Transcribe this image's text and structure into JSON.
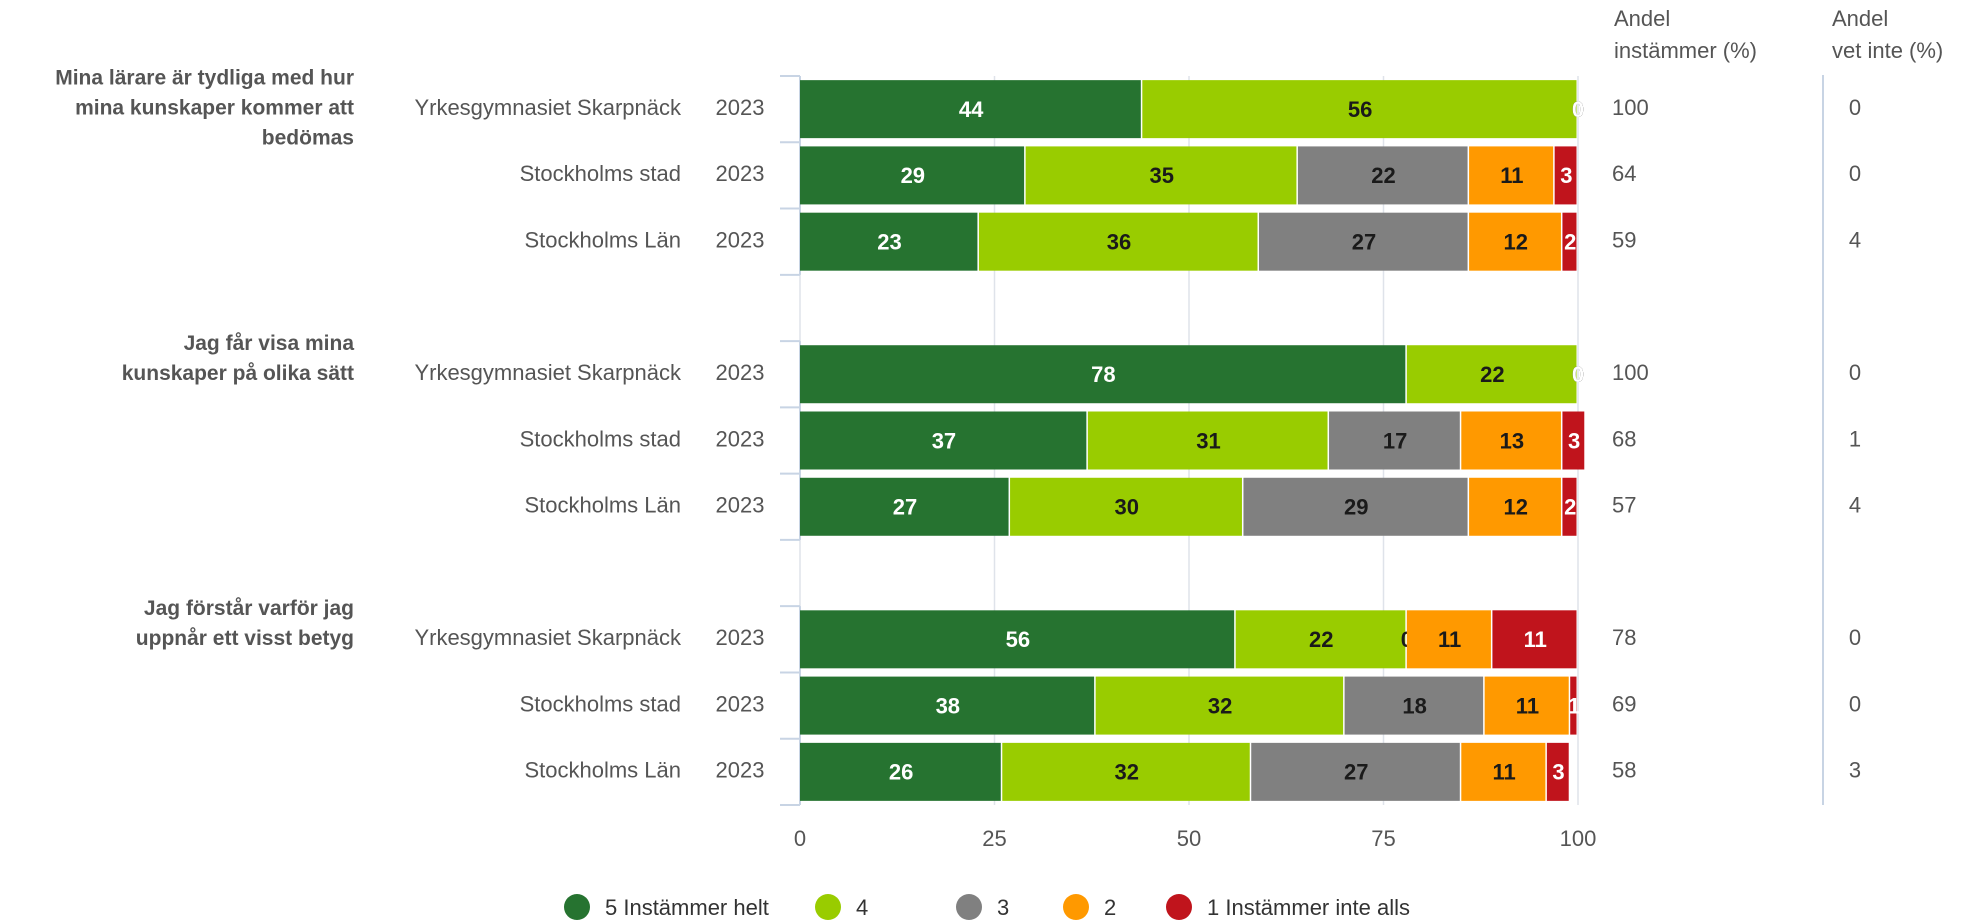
{
  "chart_data": {
    "type": "stacked-bar",
    "orientation": "horizontal",
    "group_labels": [
      [
        "Mina lärare är tydliga med hur",
        "mina kunskaper kommer att",
        "bedömas"
      ],
      [
        "Jag får visa mina",
        "kunskaper på olika sätt"
      ],
      [
        "Jag förstår varför jag",
        "uppnår ett visst betyg"
      ]
    ],
    "categories": [
      "Yrkesgymnasiet Skarpnäck",
      "Stockholms stad",
      "Stockholms Län",
      "Yrkesgymnasiet Skarpnäck",
      "Stockholms stad",
      "Stockholms Län",
      "Yrkesgymnasiet Skarpnäck",
      "Stockholms stad",
      "Stockholms Län"
    ],
    "years": [
      "2023",
      "2023",
      "2023",
      "2023",
      "2023",
      "2023",
      "2023",
      "2023",
      "2023"
    ],
    "series": [
      {
        "name": "5 Instämmer helt",
        "color": "#267330",
        "label_color": "#ffffff",
        "values": [
          44,
          29,
          23,
          78,
          37,
          27,
          56,
          38,
          26
        ]
      },
      {
        "name": "4",
        "color": "#99cc00",
        "label_color": "#1a1a1a",
        "values": [
          56,
          35,
          36,
          22,
          31,
          30,
          22,
          32,
          32
        ]
      },
      {
        "name": "3",
        "color": "#808080",
        "label_color": "#1a1a1a",
        "values": [
          0,
          22,
          27,
          0,
          17,
          29,
          0,
          18,
          27
        ]
      },
      {
        "name": "2",
        "color": "#ff9900",
        "label_color": "#1a1a1a",
        "values": [
          0,
          11,
          12,
          0,
          13,
          12,
          11,
          11,
          11
        ]
      },
      {
        "name": "1 Instämmer inte alls",
        "color": "#c0141c",
        "label_color": "#ffffff",
        "values": [
          0,
          3,
          2,
          0,
          3,
          2,
          11,
          1,
          3
        ]
      }
    ],
    "columns": [
      {
        "header": [
          "Andel",
          "instämmer (%)"
        ],
        "values": [
          100,
          64,
          59,
          100,
          68,
          57,
          78,
          69,
          58
        ]
      },
      {
        "header": [
          "Andel",
          "vet inte (%)"
        ],
        "values": [
          0,
          0,
          4,
          0,
          1,
          4,
          0,
          0,
          3
        ]
      }
    ],
    "xlim": [
      0,
      100
    ],
    "xticks": [
      0,
      25,
      50,
      75,
      100
    ],
    "grid": true,
    "legend": "bottom"
  }
}
